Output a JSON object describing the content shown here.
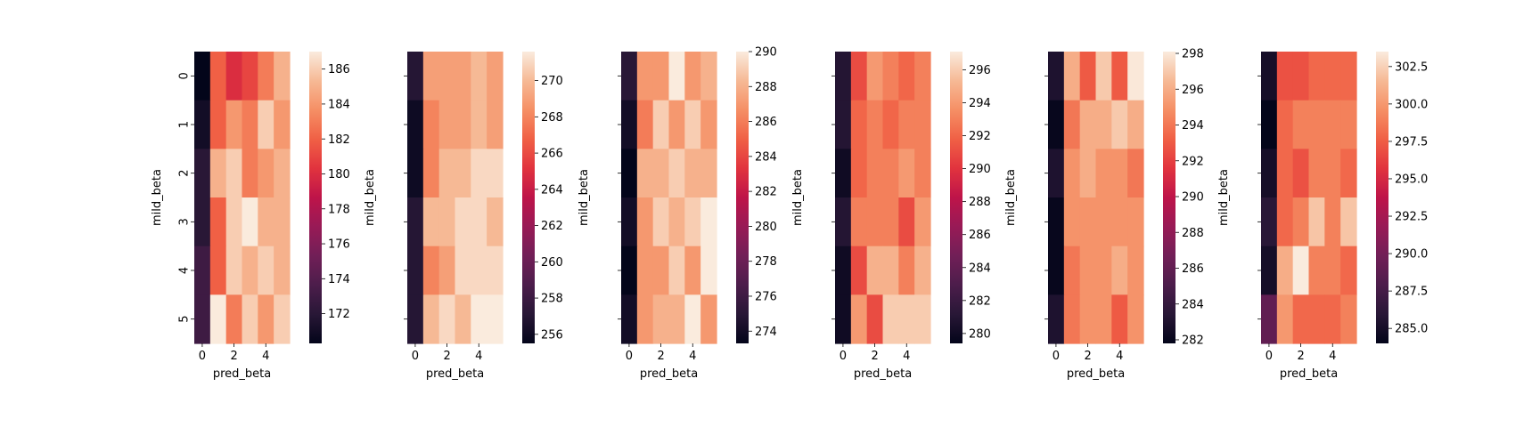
{
  "chart_data": [
    {
      "type": "heatmap",
      "xlabel": "pred_beta",
      "ylabel": "mild_beta",
      "x_tick_labels": [
        "0",
        "2",
        "4"
      ],
      "y_tick_labels": [
        "0",
        "1",
        "2",
        "3",
        "4",
        "5"
      ],
      "values": [
        [
          170,
          182,
          180,
          181,
          183,
          185
        ],
        [
          171,
          182,
          184,
          183,
          186,
          184
        ],
        [
          172,
          185,
          186,
          183,
          184,
          185
        ],
        [
          172,
          182,
          186,
          187,
          185,
          185
        ],
        [
          173,
          182,
          186,
          185,
          186,
          185
        ],
        [
          173,
          187,
          183,
          186,
          184,
          186
        ]
      ],
      "vmin": 170.3,
      "vmax": 187,
      "colorbar_ticks": [
        172,
        174,
        176,
        178,
        180,
        182,
        184,
        186
      ]
    },
    {
      "type": "heatmap",
      "xlabel": "pred_beta",
      "ylabel": "mild_beta",
      "x_tick_labels": [
        "0",
        "2",
        "4"
      ],
      "y_tick_labels": [
        "0",
        "1",
        "2",
        "3",
        "4",
        "5"
      ],
      "values": [
        [
          257,
          269,
          269,
          269,
          270,
          269
        ],
        [
          256,
          268,
          269,
          269,
          270,
          269
        ],
        [
          256,
          268,
          270,
          270,
          271,
          271
        ],
        [
          257,
          270,
          270,
          271,
          271,
          270
        ],
        [
          257,
          268,
          269,
          271,
          271,
          271
        ],
        [
          257,
          270,
          271,
          270,
          272,
          272
        ]
      ],
      "vmin": 255.5,
      "vmax": 271.6,
      "colorbar_ticks": [
        256,
        258,
        260,
        262,
        264,
        266,
        268,
        270
      ]
    },
    {
      "type": "heatmap",
      "xlabel": "pred_beta",
      "ylabel": "mild_beta",
      "x_tick_labels": [
        "0",
        "2",
        "4"
      ],
      "y_tick_labels": [
        "0",
        "1",
        "2",
        "3",
        "4",
        "5"
      ],
      "values": [
        [
          275,
          287,
          287,
          290,
          287,
          288
        ],
        [
          274,
          286,
          289,
          287,
          289,
          287
        ],
        [
          273,
          288,
          288,
          289,
          288,
          288
        ],
        [
          274,
          287,
          289,
          288,
          289,
          290
        ],
        [
          273,
          287,
          287,
          289,
          287,
          290
        ],
        [
          274,
          287,
          288,
          288,
          290,
          287
        ]
      ],
      "vmin": 273.3,
      "vmax": 290,
      "colorbar_ticks": [
        274,
        276,
        278,
        280,
        282,
        284,
        286,
        288,
        290
      ]
    },
    {
      "type": "heatmap",
      "xlabel": "pred_beta",
      "ylabel": "mild_beta",
      "x_tick_labels": [
        "0",
        "2",
        "4"
      ],
      "y_tick_labels": [
        "0",
        "1",
        "2",
        "3",
        "4",
        "5"
      ],
      "values": [
        [
          281,
          291,
          294,
          293,
          292,
          293
        ],
        [
          281,
          292,
          293,
          292,
          293,
          293
        ],
        [
          280,
          292,
          293,
          293,
          294,
          293
        ],
        [
          281,
          293,
          293,
          293,
          291,
          294
        ],
        [
          280,
          291,
          295,
          295,
          293,
          295
        ],
        [
          280,
          294,
          291,
          296,
          296,
          296
        ]
      ],
      "vmin": 279.4,
      "vmax": 297.1,
      "colorbar_ticks": [
        280,
        282,
        284,
        286,
        288,
        290,
        292,
        294,
        296
      ]
    },
    {
      "type": "heatmap",
      "xlabel": "pred_beta",
      "ylabel": "mild_beta",
      "x_tick_labels": [
        "0",
        "2",
        "4"
      ],
      "y_tick_labels": [
        "0",
        "1",
        "2",
        "3",
        "4",
        "5"
      ],
      "values": [
        [
          283,
          296,
          293,
          297,
          293,
          298
        ],
        [
          282,
          294,
          296,
          296,
          297,
          296
        ],
        [
          283,
          295,
          296,
          295,
          295,
          294
        ],
        [
          282,
          295,
          295,
          295,
          295,
          295
        ],
        [
          282,
          294,
          295,
          295,
          296,
          295
        ],
        [
          283,
          294,
          295,
          295,
          293,
          295
        ]
      ],
      "vmin": 281.8,
      "vmax": 298.1,
      "colorbar_ticks": [
        282,
        284,
        286,
        288,
        290,
        292,
        294,
        296,
        298
      ]
    },
    {
      "type": "heatmap",
      "xlabel": "pred_beta",
      "ylabel": "mild_beta",
      "x_tick_labels": [
        "0",
        "2",
        "4"
      ],
      "y_tick_labels": [
        "0",
        "1",
        "2",
        "3",
        "4",
        "5"
      ],
      "values": [
        [
          285,
          297,
          297,
          298,
          298,
          298
        ],
        [
          284,
          298,
          299,
          299,
          299,
          299
        ],
        [
          285,
          298,
          297,
          299,
          299,
          298
        ],
        [
          286,
          298,
          299,
          302,
          299,
          302
        ],
        [
          285,
          301,
          304,
          299,
          299,
          298
        ],
        [
          289,
          300,
          298,
          298,
          298,
          299
        ]
      ],
      "vmin": 284,
      "vmax": 303.5,
      "colorbar_ticks": [
        285.0,
        287.5,
        290.0,
        292.5,
        295.0,
        297.5,
        300.0,
        302.5
      ]
    }
  ]
}
